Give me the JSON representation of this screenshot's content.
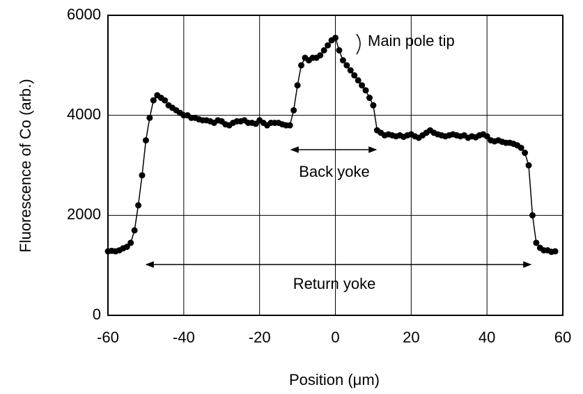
{
  "chart_data": {
    "type": "scatter-line",
    "x_label": "Position (μm)",
    "y_label": "Fluorescence of Co (arb.)",
    "x": [
      -60,
      -59,
      -58,
      -57,
      -56,
      -55,
      -54,
      -53,
      -52,
      -51,
      -50,
      -49,
      -48,
      -47,
      -46,
      -45,
      -44,
      -43,
      -42,
      -41,
      -40,
      -39,
      -38,
      -37,
      -36,
      -35,
      -34,
      -33,
      -32,
      -31,
      -30,
      -29,
      -28,
      -27,
      -26,
      -25,
      -24,
      -23,
      -22,
      -21,
      -20,
      -19,
      -18,
      -17,
      -16,
      -15,
      -14,
      -13,
      -12,
      -11,
      -10,
      -9,
      -8,
      -7,
      -6,
      -5,
      -4,
      -3,
      -2,
      -1,
      0,
      1,
      2,
      3,
      4,
      5,
      6,
      7,
      8,
      9,
      10,
      11,
      12,
      13,
      14,
      15,
      16,
      17,
      18,
      19,
      20,
      21,
      22,
      23,
      24,
      25,
      26,
      27,
      28,
      29,
      30,
      31,
      32,
      33,
      34,
      35,
      36,
      37,
      38,
      39,
      40,
      41,
      42,
      43,
      44,
      45,
      46,
      47,
      48,
      49,
      50,
      51,
      52,
      53,
      54,
      55,
      56,
      57,
      58
    ],
    "values": [
      1280,
      1290,
      1280,
      1300,
      1340,
      1370,
      1450,
      1700,
      2200,
      2800,
      3500,
      3950,
      4300,
      4400,
      4350,
      4300,
      4200,
      4150,
      4100,
      4050,
      4000,
      4000,
      3950,
      3950,
      3920,
      3900,
      3900,
      3880,
      3850,
      3900,
      3880,
      3820,
      3800,
      3850,
      3880,
      3880,
      3900,
      3850,
      3850,
      3830,
      3900,
      3850,
      3800,
      3850,
      3850,
      3850,
      3820,
      3800,
      3800,
      4100,
      4600,
      5000,
      5150,
      5100,
      5150,
      5150,
      5200,
      5300,
      5400,
      5500,
      5550,
      5300,
      5100,
      5000,
      4900,
      4800,
      4700,
      4600,
      4500,
      4350,
      4200,
      3700,
      3650,
      3600,
      3620,
      3600,
      3580,
      3600,
      3570,
      3600,
      3620,
      3580,
      3550,
      3600,
      3650,
      3700,
      3650,
      3620,
      3600,
      3580,
      3600,
      3620,
      3600,
      3580,
      3600,
      3550,
      3580,
      3560,
      3600,
      3620,
      3580,
      3500,
      3480,
      3500,
      3470,
      3450,
      3450,
      3430,
      3400,
      3350,
      3250,
      3000,
      2000,
      1450,
      1350,
      1300,
      1300,
      1270,
      1280
    ],
    "color": "#000000",
    "xlim": [
      -60,
      60
    ],
    "xticks": [
      -60,
      -40,
      -20,
      0,
      20,
      40,
      60
    ],
    "ylim": [
      0,
      6000
    ],
    "yticks": [
      0,
      2000,
      4000,
      6000
    ],
    "grid": true,
    "annotations": [
      "Main pole tip",
      "Back yoke",
      "Return yoke"
    ]
  }
}
